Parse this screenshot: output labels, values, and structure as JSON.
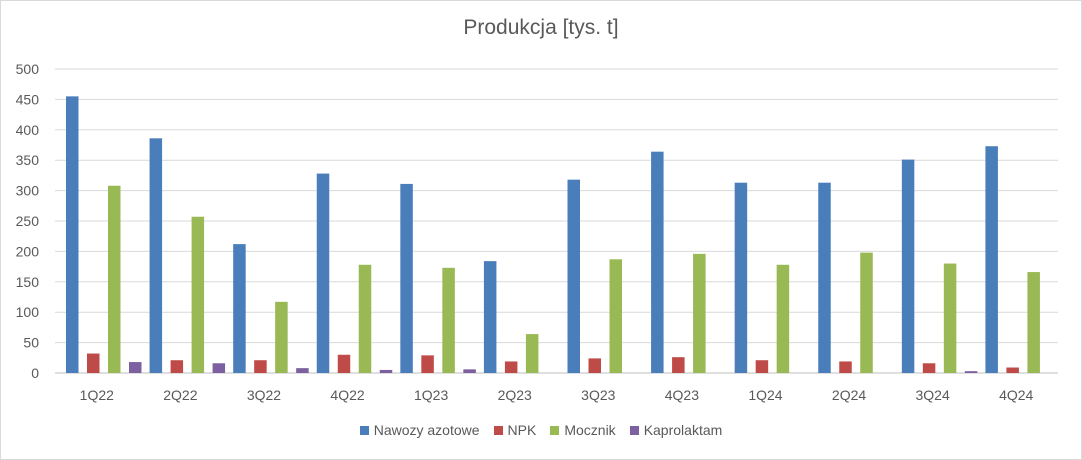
{
  "chart_data": {
    "type": "bar",
    "title": "Produkcja [tys. t]",
    "xlabel": "",
    "ylabel": "",
    "ylim": [
      0,
      500
    ],
    "yticks": [
      0,
      50,
      100,
      150,
      200,
      250,
      300,
      350,
      400,
      450,
      500
    ],
    "grid": true,
    "legend_position": "bottom",
    "categories": [
      "1Q22",
      "2Q22",
      "3Q22",
      "4Q22",
      "1Q23",
      "2Q23",
      "3Q23",
      "4Q23",
      "1Q24",
      "2Q24",
      "3Q24",
      "4Q24"
    ],
    "series": [
      {
        "name": "Nawozy azotowe",
        "color": "#4a7ebb",
        "values": [
          455,
          386,
          212,
          328,
          311,
          184,
          318,
          364,
          313,
          313,
          351,
          373
        ]
      },
      {
        "name": "NPK",
        "color": "#be4b48",
        "values": [
          32,
          21,
          21,
          30,
          29,
          19,
          24,
          26,
          21,
          19,
          16,
          9
        ]
      },
      {
        "name": "Mocznik",
        "color": "#98b954",
        "values": [
          308,
          257,
          117,
          178,
          173,
          64,
          187,
          196,
          178,
          198,
          180,
          166
        ]
      },
      {
        "name": "Kaprolaktam",
        "color": "#7d60a0",
        "values": [
          18,
          16,
          8,
          5,
          6,
          0,
          0,
          0,
          0,
          0,
          3,
          0
        ]
      }
    ]
  }
}
